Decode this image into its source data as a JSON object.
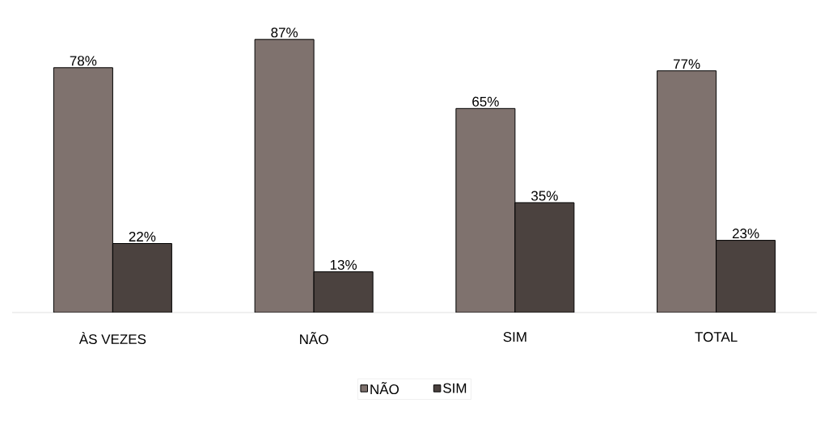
{
  "chart_data": {
    "type": "bar",
    "categories": [
      "ÀS VEZES",
      "NÃO",
      "SIM",
      "TOTAL"
    ],
    "series": [
      {
        "name": "NÃO",
        "color": "#7f726e",
        "values": [
          78,
          87,
          65,
          77
        ],
        "value_labels": [
          "78%",
          "87%",
          "65%",
          "77%"
        ]
      },
      {
        "name": "SIM",
        "color": "#4b423f",
        "values": [
          22,
          13,
          35,
          23
        ],
        "value_labels": [
          "22%",
          "13%",
          "35%",
          "23%"
        ]
      }
    ],
    "legend": "bottom",
    "grid": false
  }
}
